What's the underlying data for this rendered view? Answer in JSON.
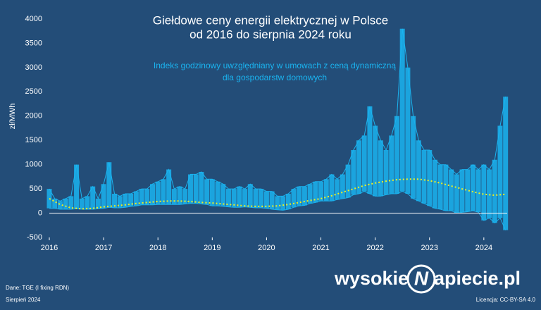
{
  "chart_data": {
    "type": "range-line",
    "title": [
      "Giełdowe ceny energii elektrycznej w Polsce",
      "od 2016 do sierpnia 2024 roku"
    ],
    "annotation": [
      "Indeks godzinowy uwzględniany w umowach z ceną dynamiczną",
      "dla gospodarstw domowych"
    ],
    "y_label": "zł/MWh",
    "xlim": [
      2016,
      2024.43
    ],
    "xticks": [
      2016,
      2017,
      2018,
      2019,
      2020,
      2021,
      2022,
      2023,
      2024
    ],
    "ylim": [
      -500,
      4000
    ],
    "yticks": [
      -500,
      0,
      500,
      1000,
      1500,
      2000,
      2500,
      3000,
      3500,
      4000
    ],
    "range": {
      "color": "#1ab4f0",
      "x": [
        2016.0,
        2016.1,
        2016.2,
        2016.3,
        2016.4,
        2016.5,
        2016.6,
        2016.7,
        2016.8,
        2016.9,
        2017.0,
        2017.1,
        2017.2,
        2017.3,
        2017.4,
        2017.5,
        2017.6,
        2017.7,
        2017.8,
        2017.9,
        2018.0,
        2018.1,
        2018.2,
        2018.3,
        2018.4,
        2018.5,
        2018.6,
        2018.7,
        2018.8,
        2018.9,
        2019.0,
        2019.1,
        2019.2,
        2019.3,
        2019.4,
        2019.5,
        2019.6,
        2019.7,
        2019.8,
        2019.9,
        2020.0,
        2020.1,
        2020.2,
        2020.3,
        2020.4,
        2020.5,
        2020.6,
        2020.7,
        2020.8,
        2020.9,
        2021.0,
        2021.1,
        2021.2,
        2021.3,
        2021.4,
        2021.5,
        2021.6,
        2021.7,
        2021.8,
        2021.9,
        2022.0,
        2022.1,
        2022.2,
        2022.3,
        2022.4,
        2022.5,
        2022.6,
        2022.7,
        2022.8,
        2022.9,
        2023.0,
        2023.1,
        2023.2,
        2023.3,
        2023.4,
        2023.5,
        2023.6,
        2023.7,
        2023.8,
        2023.9,
        2024.0,
        2024.1,
        2024.2,
        2024.3,
        2024.4
      ],
      "high": [
        500,
        300,
        250,
        300,
        350,
        1000,
        300,
        350,
        550,
        300,
        600,
        1050,
        400,
        350,
        400,
        400,
        450,
        500,
        500,
        600,
        650,
        700,
        900,
        500,
        550,
        500,
        800,
        800,
        850,
        700,
        700,
        650,
        600,
        500,
        500,
        550,
        500,
        600,
        500,
        500,
        450,
        450,
        350,
        350,
        400,
        500,
        550,
        550,
        600,
        650,
        650,
        700,
        800,
        700,
        800,
        1000,
        1300,
        1500,
        1600,
        2200,
        1800,
        1500,
        1300,
        1600,
        2000,
        3800,
        3000,
        2000,
        1500,
        1300,
        1300,
        1100,
        1000,
        1000,
        900,
        800,
        900,
        900,
        1000,
        900,
        1000,
        900,
        1100,
        1800,
        2400
      ],
      "low": [
        100,
        100,
        80,
        80,
        80,
        90,
        80,
        80,
        80,
        90,
        100,
        120,
        110,
        110,
        120,
        140,
        150,
        170,
        170,
        170,
        180,
        180,
        180,
        180,
        180,
        190,
        200,
        200,
        190,
        180,
        150,
        150,
        140,
        130,
        120,
        120,
        130,
        120,
        110,
        110,
        100,
        80,
        70,
        60,
        80,
        120,
        150,
        160,
        200,
        220,
        250,
        250,
        250,
        280,
        300,
        320,
        380,
        400,
        450,
        400,
        350,
        350,
        380,
        400,
        400,
        450,
        400,
        300,
        250,
        200,
        150,
        100,
        80,
        50,
        50,
        0,
        20,
        30,
        50,
        20,
        -150,
        -100,
        -200,
        -100,
        -350
      ]
    },
    "trend": {
      "color": "#f0f020",
      "x": [
        2016.0,
        2016.2,
        2016.4,
        2016.6,
        2016.8,
        2017.0,
        2017.2,
        2017.4,
        2017.6,
        2017.8,
        2018.0,
        2018.2,
        2018.4,
        2018.6,
        2018.8,
        2019.0,
        2019.2,
        2019.4,
        2019.6,
        2019.8,
        2020.0,
        2020.2,
        2020.4,
        2020.6,
        2020.8,
        2021.0,
        2021.2,
        2021.4,
        2021.6,
        2021.8,
        2022.0,
        2022.2,
        2022.4,
        2022.6,
        2022.8,
        2023.0,
        2023.2,
        2023.4,
        2023.6,
        2023.8,
        2024.0,
        2024.2,
        2024.4
      ],
      "values": [
        300,
        180,
        110,
        90,
        100,
        130,
        150,
        170,
        200,
        220,
        240,
        250,
        250,
        240,
        220,
        210,
        190,
        170,
        150,
        140,
        140,
        150,
        180,
        220,
        260,
        300,
        360,
        430,
        500,
        570,
        620,
        660,
        690,
        700,
        700,
        670,
        620,
        560,
        500,
        440,
        390,
        370,
        390
      ]
    },
    "source": "Dane: TGE (I fixing RDN)",
    "date": "Sierpień 2024",
    "license": "Licencja: CC-BY-SA 4.0",
    "logo": {
      "left": "wysokie",
      "mark": "N",
      "right": "apiecie.pl"
    }
  }
}
